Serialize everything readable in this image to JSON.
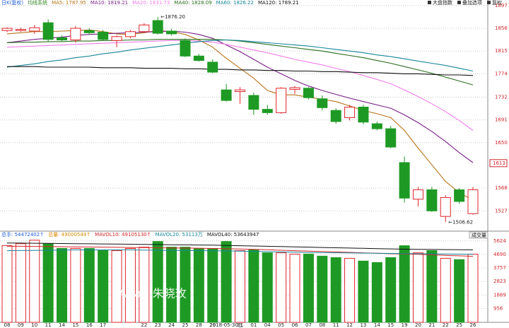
{
  "chart_data": [
    {
      "type": "candlestick",
      "title": "日K(复权)",
      "subtitle": "均线系统",
      "toolbar": [
        "大盘指数",
        "叠加选项",
        "复权"
      ],
      "categories": [
        "08",
        "09",
        "10",
        "11",
        "14",
        "15",
        "16",
        "17",
        null,
        null,
        "22",
        "23",
        "24",
        "25",
        "28",
        "29",
        "2018-05-30三",
        "31",
        "01",
        "04",
        "05",
        "06",
        "07",
        "08",
        "11",
        "12",
        "13",
        "14",
        "15",
        "19",
        "20",
        "21",
        "22",
        "25",
        "26"
      ],
      "open": [
        1852,
        1852,
        1851,
        1866,
        1839,
        1835,
        1852,
        1849,
        1834,
        1841,
        1850,
        1870,
        1851,
        1834,
        1806,
        1795,
        1745,
        1742,
        1735,
        1710,
        1704,
        1746,
        1748,
        1729,
        1708,
        1695,
        1714,
        1684,
        1675,
        1614,
        1548,
        1565,
        1517,
        1565,
        1522
      ],
      "high": [
        1858,
        1857,
        1862,
        1872,
        1843,
        1860,
        1856,
        1853,
        1843,
        1853,
        1865,
        1876.2,
        1855,
        1838,
        1810,
        1800,
        1756,
        1750,
        1740,
        1718,
        1750,
        1752,
        1750,
        1735,
        1712,
        1718,
        1718,
        1688,
        1680,
        1625,
        1570,
        1570,
        1555,
        1568,
        1570
      ],
      "low": [
        1849,
        1850,
        1846,
        1832,
        1833,
        1830,
        1845,
        1834,
        1822,
        1838,
        1848,
        1845,
        1843,
        1804,
        1796,
        1775,
        1724,
        1720,
        1700,
        1700,
        1702,
        1738,
        1728,
        1708,
        1684,
        1690,
        1683,
        1672,
        1640,
        1542,
        1535,
        1525,
        1506.62,
        1540,
        1520
      ],
      "close": [
        1856,
        1854,
        1857,
        1836,
        1835,
        1856,
        1848,
        1836,
        1841,
        1850,
        1862,
        1847,
        1846,
        1806,
        1798,
        1777,
        1726,
        1745,
        1710,
        1704,
        1748,
        1749,
        1731,
        1713,
        1688,
        1714,
        1687,
        1675,
        1642,
        1550,
        1565,
        1527,
        1551,
        1544,
        1565
      ],
      "up_color": "#e0262b",
      "down_color": "#1e9a24",
      "series": [
        {
          "name": "MA5: 1787.95",
          "color": "#b8741a",
          "values": [
            1846,
            1848,
            1850,
            1850,
            1851,
            1852,
            1853,
            1850,
            1846,
            1845,
            1848,
            1852,
            1850,
            1845,
            1835,
            1822,
            1802,
            1784,
            1766,
            1744,
            1736,
            1736,
            1732,
            1728,
            1724,
            1716,
            1708,
            1702,
            1695,
            1672,
            1640,
            1610,
            1580,
            1560,
            1546
          ]
        },
        {
          "name": "MA10: 1819.21",
          "color": "#7a1f86",
          "values": [
            1830,
            1833,
            1836,
            1838,
            1840,
            1843,
            1845,
            1846,
            1847,
            1848,
            1849,
            1850,
            1851,
            1849,
            1845,
            1838,
            1826,
            1814,
            1800,
            1786,
            1774,
            1762,
            1752,
            1744,
            1737,
            1730,
            1724,
            1718,
            1712,
            1700,
            1686,
            1670,
            1652,
            1632,
            1614
          ]
        },
        {
          "name": "MA20: 1831.73",
          "color": "#f07ee8",
          "values": [
            1822,
            1823,
            1824,
            1825,
            1826,
            1827,
            1828,
            1829,
            1830,
            1831,
            1832,
            1833,
            1834,
            1834,
            1833,
            1831,
            1827,
            1822,
            1817,
            1812,
            1806,
            1800,
            1795,
            1790,
            1784,
            1778,
            1771,
            1764,
            1756,
            1745,
            1733,
            1720,
            1706,
            1690,
            1672
          ]
        },
        {
          "name": "MA40: 1828.09",
          "color": "#2a6e1e",
          "values": [
            1830,
            1831,
            1831,
            1832,
            1832,
            1833,
            1833,
            1834,
            1834,
            1835,
            1835,
            1836,
            1836,
            1836,
            1836,
            1836,
            1835,
            1833,
            1830,
            1827,
            1824,
            1821,
            1818,
            1815,
            1811,
            1807,
            1803,
            1798,
            1793,
            1787,
            1781,
            1775,
            1768,
            1761,
            1754
          ]
        },
        {
          "name": "MA60: 1826.22",
          "color": "#17869a",
          "values": [
            1786,
            1789,
            1792,
            1796,
            1799,
            1803,
            1806,
            1810,
            1813,
            1817,
            1820,
            1823,
            1826,
            1829,
            1832,
            1834,
            1835,
            1834,
            1832,
            1830,
            1828,
            1826,
            1824,
            1821,
            1818,
            1815,
            1812,
            1808,
            1805,
            1801,
            1797,
            1793,
            1789,
            1784,
            1779
          ]
        },
        {
          "name": "MA120: 1789.21",
          "color": "#111111",
          "values": [
            1787,
            1787,
            1787,
            1786,
            1786,
            1786,
            1786,
            1785,
            1785,
            1785,
            1784,
            1784,
            1784,
            1783,
            1783,
            1782,
            1782,
            1781,
            1781,
            1780,
            1780,
            1779,
            1779,
            1778,
            1778,
            1777,
            1776,
            1776,
            1775,
            1774,
            1774,
            1773,
            1772,
            1772,
            1771
          ]
        }
      ],
      "annotations": [
        {
          "text": "←1876.20",
          "value": 1876.2,
          "index": 11
        },
        {
          "text": "←1506.62",
          "value": 1506.62,
          "index": 32
        }
      ],
      "price_marker": 1613,
      "ylim": [
        1493,
        1907
      ],
      "yticks": [
        1527,
        1568,
        1650,
        1691,
        1732,
        1774,
        1815,
        1856,
        1897
      ],
      "grid": true
    },
    {
      "type": "bar",
      "header": [
        {
          "text": "总手: 54472402↑",
          "color": "#1e5bd6"
        },
        {
          "text": "总量: 49000544↑",
          "color": "#d98a00"
        }
      ],
      "button": "成交量",
      "watermark": "Aria - 朱晓玫",
      "values": [
        5300,
        5430,
        5670,
        5430,
        5100,
        5100,
        5100,
        4950,
        4950,
        5100,
        5190,
        5580,
        5190,
        5190,
        5100,
        5100,
        5580,
        4950,
        5000,
        4800,
        4800,
        4710,
        4710,
        4570,
        4470,
        4420,
        4230,
        4130,
        4470,
        5290,
        4800,
        4950,
        4420,
        4330,
        4710
      ],
      "series": [
        {
          "name": "MAVOL10: 49105130↑",
          "color": "#d0262b",
          "values": [
            5250,
            5250,
            5240,
            5230,
            5220,
            5210,
            5200,
            5190,
            5180,
            5170,
            5160,
            5150,
            5140,
            5130,
            5120,
            5100,
            5080,
            5060,
            5040,
            5010,
            4980,
            4950,
            4920,
            4890,
            4860,
            4830,
            4800,
            4770,
            4740,
            4720,
            4700,
            4660,
            4620,
            4590,
            4560
          ]
        },
        {
          "name": "MAVOL20: 53113万",
          "color": "#17869a",
          "values": [
            4950,
            4960,
            4970,
            4980,
            4990,
            5000,
            5000,
            5000,
            5000,
            5000,
            4990,
            4980,
            4970,
            4960,
            4950,
            4940,
            4930,
            4920,
            4900,
            4880,
            4860,
            4840,
            4820,
            4810,
            4800,
            4790,
            4780,
            4770,
            4760,
            4750,
            4740,
            4730,
            4720,
            4710,
            4700
          ]
        },
        {
          "name": "MAVOL40: 53643947",
          "color": "#111111",
          "values": [
            5480,
            5470,
            5460,
            5450,
            5440,
            5430,
            5420,
            5410,
            5400,
            5390,
            5380,
            5370,
            5360,
            5350,
            5340,
            5330,
            5310,
            5290,
            5270,
            5250,
            5230,
            5210,
            5190,
            5170,
            5150,
            5130,
            5110,
            5090,
            5070,
            5050,
            5040,
            5030,
            5020,
            5010,
            5000
          ]
        }
      ],
      "ylim": [
        0,
        6100
      ],
      "yticks": [
        956,
        1889,
        2823,
        3757,
        4690,
        5624
      ],
      "grid": true
    }
  ]
}
